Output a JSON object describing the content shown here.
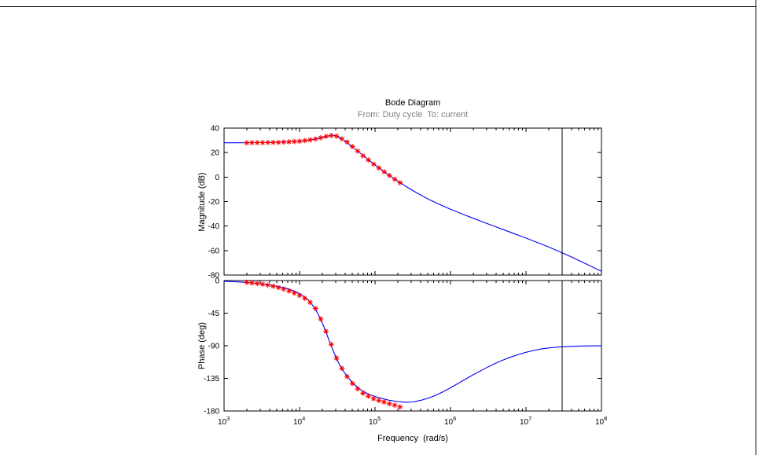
{
  "figure": {
    "title": "Bode Diagram",
    "subtitle": "From: Duty cycle  To: current",
    "colors": {
      "model_line": "#0000FF",
      "data_markers": "#FF0000",
      "frequency_cursor": "#000000",
      "subtitle_text": "#7F7F7F"
    }
  },
  "chart_data": [
    {
      "type": "line",
      "id": "magnitude",
      "ylabel": "Magnitude (dB)",
      "ylim": [
        -80,
        40
      ],
      "yticks": [
        40,
        20,
        0,
        -20,
        -40,
        -60,
        -80
      ],
      "xscale": "log",
      "xlim_exp": [
        3,
        8
      ],
      "xticks_exp": [
        3,
        4,
        5,
        6,
        7,
        8
      ],
      "show_x_tick_labels": false,
      "series": [
        {
          "name": "magnitude-model-line",
          "style": "line",
          "color": "#0000FF",
          "x_log10": [
            3.0,
            3.2,
            3.4,
            3.6,
            3.8,
            3.9,
            4.0,
            4.1,
            4.15,
            4.2,
            4.25,
            4.3,
            4.35,
            4.4,
            4.45,
            4.5,
            4.55,
            4.6,
            4.7,
            4.8,
            4.9,
            5.0,
            5.1,
            5.2,
            5.3,
            5.4,
            5.5,
            5.6,
            5.7,
            5.8,
            5.9,
            6.0,
            6.1,
            6.2,
            6.3,
            6.4,
            6.5,
            6.6,
            6.7,
            6.8,
            6.9,
            7.0,
            7.1,
            7.2,
            7.3,
            7.4,
            7.5,
            7.6,
            7.7,
            7.8,
            7.9,
            8.0
          ],
          "y": [
            28.0,
            28.0,
            28.1,
            28.2,
            28.6,
            28.9,
            29.3,
            30.0,
            30.5,
            31.0,
            31.7,
            32.4,
            33.2,
            33.8,
            34.0,
            33.2,
            31.5,
            29.3,
            24.8,
            19.8,
            14.8,
            10.0,
            5.4,
            1.0,
            -3.2,
            -7.2,
            -11.0,
            -14.5,
            -17.8,
            -20.8,
            -23.6,
            -26.2,
            -28.7,
            -31.2,
            -33.6,
            -36.0,
            -38.3,
            -40.6,
            -42.9,
            -45.2,
            -47.5,
            -49.8,
            -52.2,
            -54.6,
            -57.1,
            -59.7,
            -62.4,
            -65.2,
            -68.1,
            -71.0,
            -74.0,
            -77.0
          ]
        },
        {
          "name": "magnitude-estimation-markers",
          "style": "asterisk",
          "color": "#FF0000",
          "x_log10": [
            3.3,
            3.37,
            3.44,
            3.51,
            3.58,
            3.65,
            3.72,
            3.79,
            3.86,
            3.93,
            4.0,
            4.07,
            4.14,
            4.21,
            4.28,
            4.35,
            4.42,
            4.49,
            4.56,
            4.63,
            4.7,
            4.77,
            4.84,
            4.91,
            4.98,
            5.05,
            5.12,
            5.19,
            5.26,
            5.33
          ],
          "y": [
            28.0,
            28.1,
            28.1,
            28.1,
            28.2,
            28.3,
            28.4,
            28.6,
            28.8,
            29.0,
            29.3,
            29.8,
            30.4,
            31.1,
            32.1,
            33.2,
            33.9,
            33.4,
            31.3,
            28.6,
            24.9,
            21.2,
            17.5,
            14.0,
            10.6,
            7.4,
            4.3,
            1.3,
            -1.7,
            -4.6
          ]
        },
        {
          "name": "magnitude-frequency-cursor",
          "style": "vline",
          "color": "#000000",
          "x_log10": 7.48
        }
      ]
    },
    {
      "type": "line",
      "id": "phase",
      "ylabel": "Phase (deg)",
      "xlabel": "Frequency  (rad/s)",
      "ylim": [
        -180,
        0
      ],
      "yticks": [
        0,
        -45,
        -90,
        -135,
        -180
      ],
      "xscale": "log",
      "xlim_exp": [
        3,
        8
      ],
      "xticks_exp": [
        3,
        4,
        5,
        6,
        7,
        8
      ],
      "show_x_tick_labels": true,
      "series": [
        {
          "name": "phase-model-line",
          "style": "line",
          "color": "#0000FF",
          "x_log10": [
            3.0,
            3.2,
            3.4,
            3.6,
            3.8,
            3.9,
            4.0,
            4.1,
            4.15,
            4.2,
            4.25,
            4.3,
            4.35,
            4.4,
            4.45,
            4.5,
            4.55,
            4.6,
            4.7,
            4.8,
            4.9,
            5.0,
            5.1,
            5.2,
            5.3,
            5.4,
            5.5,
            5.6,
            5.7,
            5.8,
            5.9,
            6.0,
            6.1,
            6.2,
            6.3,
            6.4,
            6.5,
            6.6,
            6.7,
            6.8,
            6.9,
            7.0,
            7.1,
            7.2,
            7.3,
            7.4,
            7.5,
            7.6,
            7.7,
            7.8,
            7.9,
            8.0
          ],
          "y": [
            -1.0,
            -2.0,
            -3.5,
            -6.0,
            -10.0,
            -13.5,
            -18.0,
            -25.0,
            -31.0,
            -38.0,
            -47.0,
            -58.0,
            -71.0,
            -85.0,
            -98.0,
            -110.0,
            -120.0,
            -128.0,
            -141.0,
            -150.0,
            -156.0,
            -160.0,
            -163.0,
            -165.5,
            -167.0,
            -168.0,
            -167.5,
            -165.5,
            -162.5,
            -158.5,
            -153.5,
            -148.0,
            -142.0,
            -136.0,
            -130.0,
            -124.5,
            -119.0,
            -114.0,
            -109.5,
            -105.5,
            -102.0,
            -99.0,
            -96.5,
            -94.5,
            -93.0,
            -92.0,
            -91.3,
            -90.8,
            -90.4,
            -90.2,
            -90.1,
            -90.0
          ]
        },
        {
          "name": "phase-estimation-markers",
          "style": "asterisk",
          "color": "#FF0000",
          "x_log10": [
            3.3,
            3.37,
            3.44,
            3.51,
            3.58,
            3.65,
            3.72,
            3.79,
            3.86,
            3.93,
            4.0,
            4.07,
            4.14,
            4.21,
            4.28,
            4.35,
            4.42,
            4.49,
            4.56,
            4.63,
            4.7,
            4.77,
            4.84,
            4.91,
            4.98,
            5.05,
            5.12,
            5.19,
            5.26,
            5.33
          ],
          "y": [
            -2.5,
            -3.2,
            -4.0,
            -5.0,
            -6.3,
            -7.8,
            -9.6,
            -11.8,
            -14.3,
            -17.2,
            -20.5,
            -24.5,
            -30.0,
            -38.5,
            -53.0,
            -70.0,
            -88.0,
            -107.0,
            -121.0,
            -132.5,
            -142.0,
            -149.5,
            -155.5,
            -159.5,
            -163.0,
            -165.5,
            -167.5,
            -170.0,
            -172.0,
            -174.5
          ]
        },
        {
          "name": "phase-frequency-cursor",
          "style": "vline",
          "color": "#000000",
          "x_log10": 7.48
        }
      ]
    }
  ]
}
